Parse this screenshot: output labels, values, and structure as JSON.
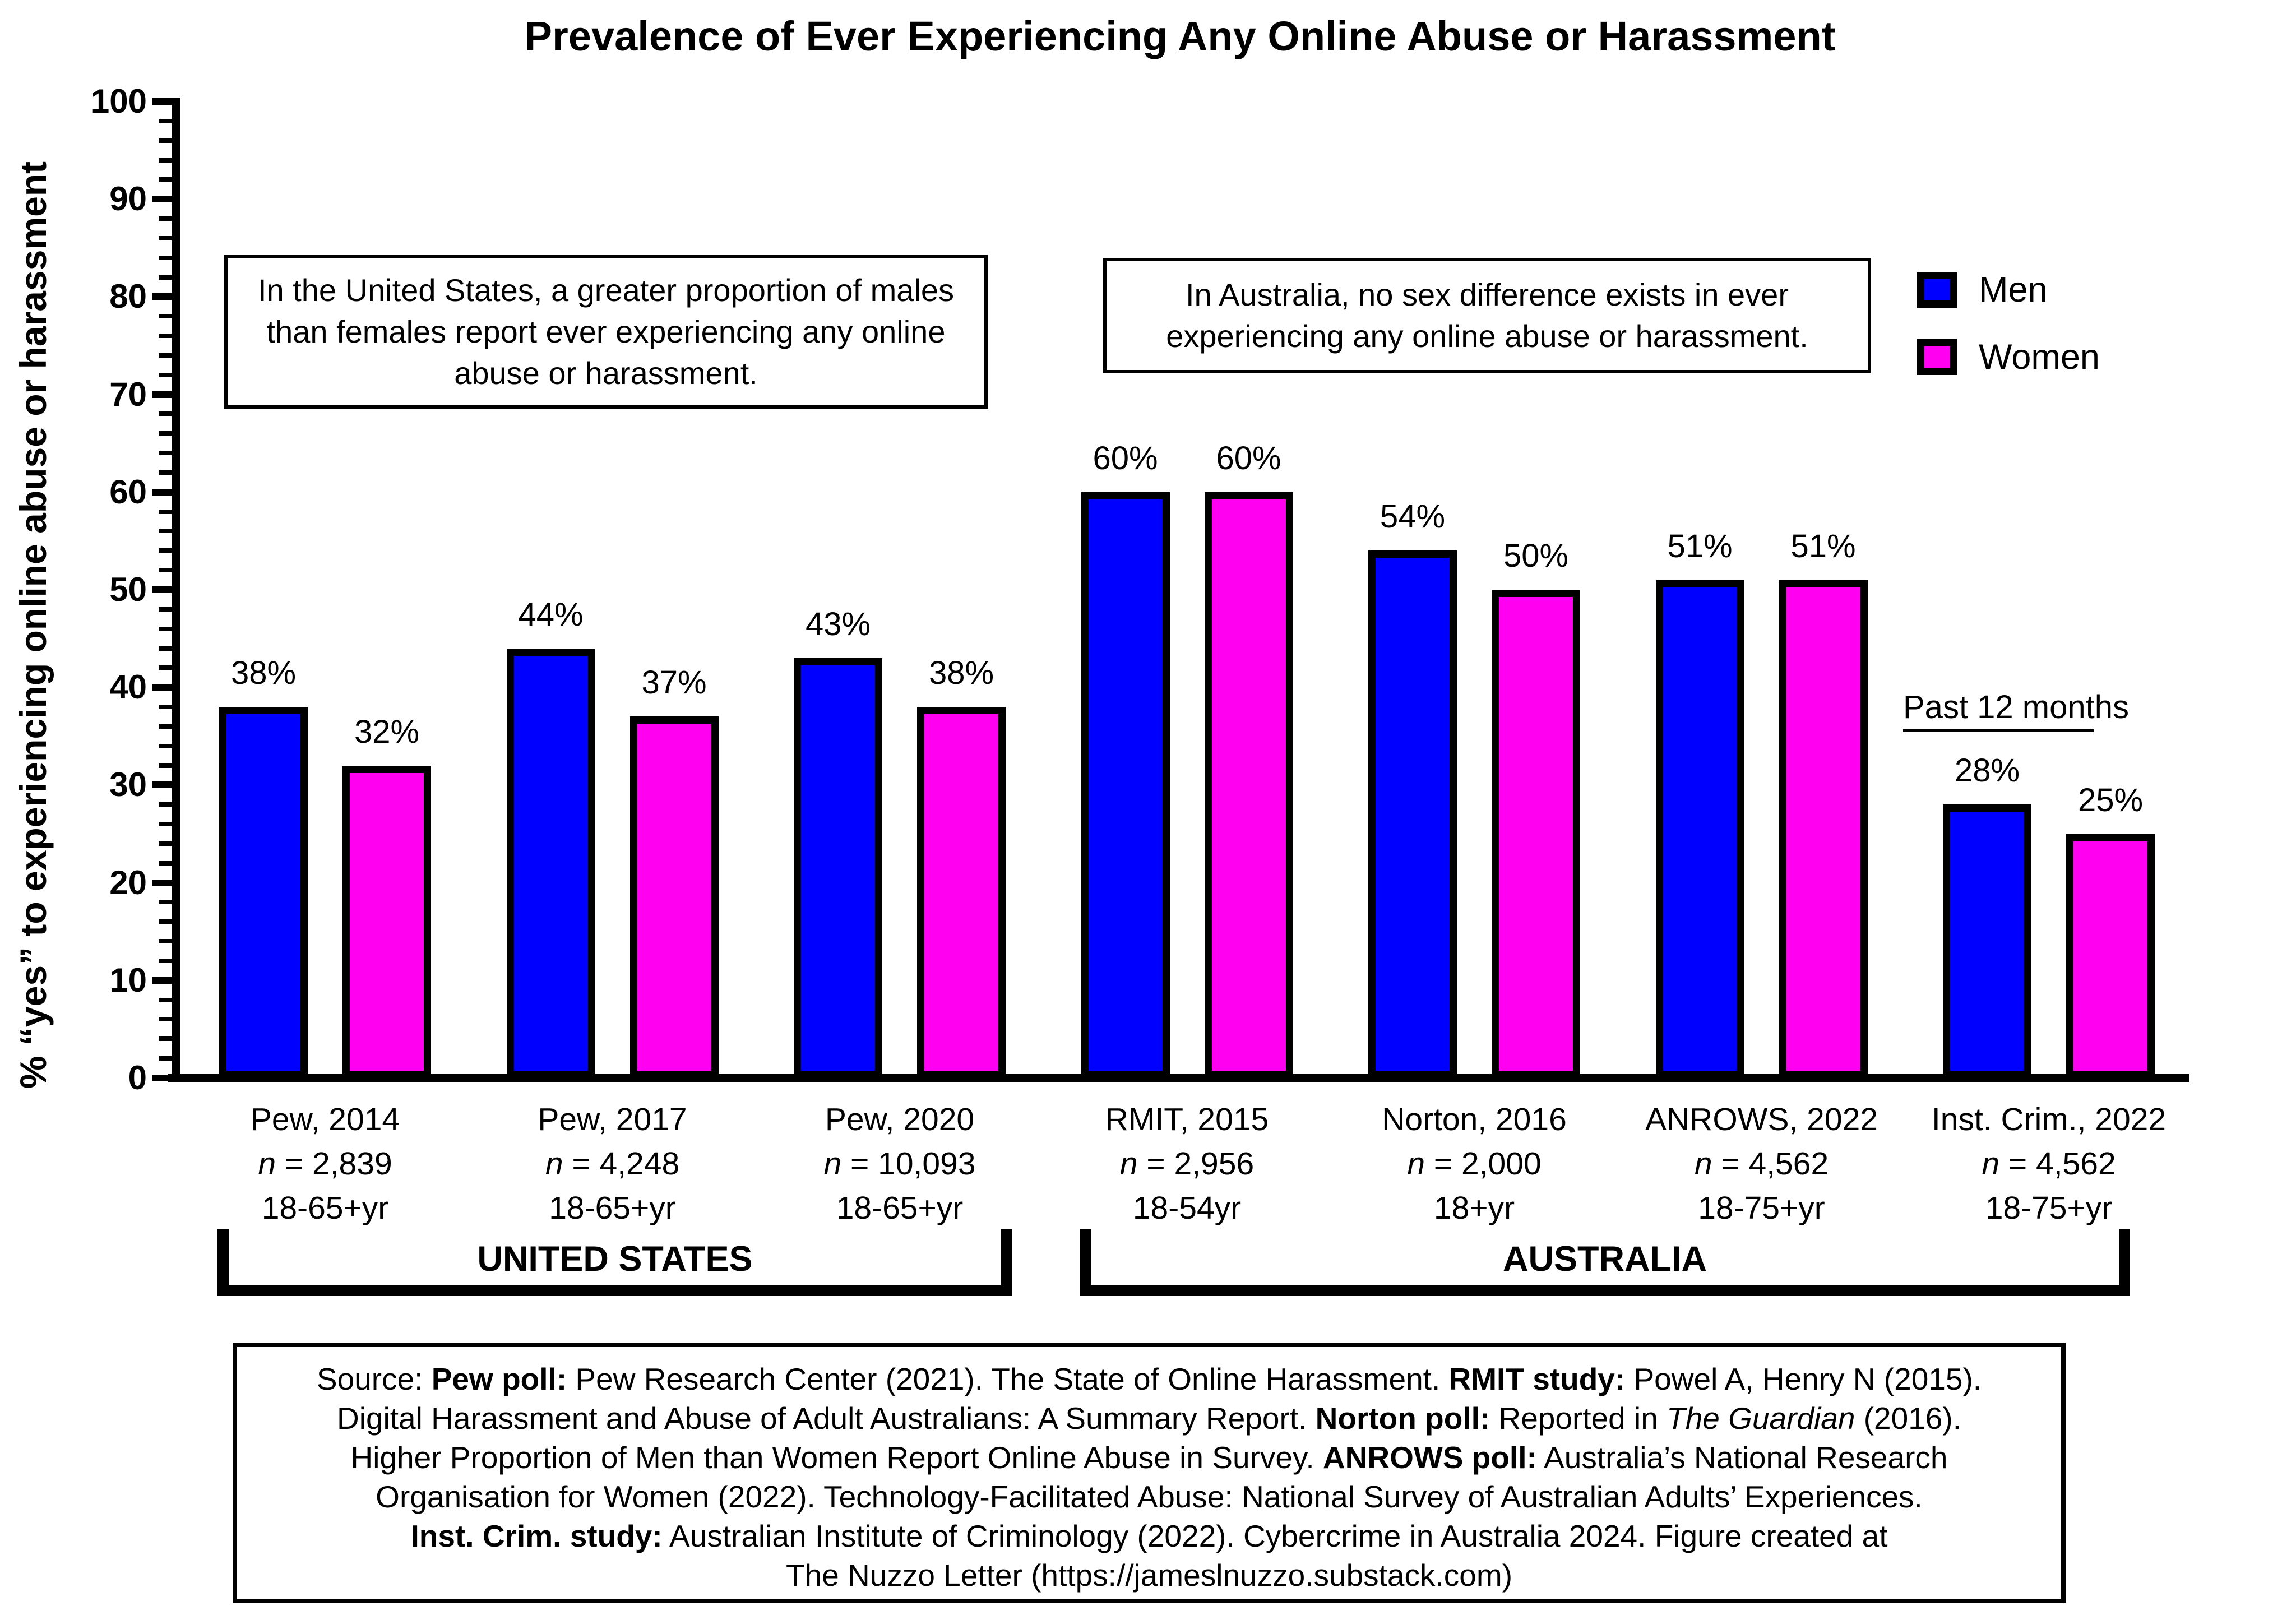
{
  "page": {
    "background": "#FFFFFF"
  },
  "chart_data": {
    "type": "bar",
    "title": "Prevalence of Ever Experiencing Any Online Abuse or Harassment",
    "ylabel": "% “yes” to experiencing online abuse or harassment",
    "ylim": [
      0,
      100
    ],
    "ytick_major_step": 10,
    "ytick_minor_step": 2,
    "grid": "off",
    "value_suffix": "%",
    "legend": {
      "position": "top-right",
      "entries": [
        {
          "label": "Men",
          "color": "#0000FF"
        },
        {
          "label": "Women",
          "color": "#FF00F0"
        }
      ]
    },
    "groups": [
      {
        "study": "Pew, 2014",
        "n_label": "n",
        "n_value": "2,839",
        "age": "18-65+yr",
        "men": 38,
        "women": 32
      },
      {
        "study": "Pew, 2017",
        "n_label": "n",
        "n_value": "4,248",
        "age": "18-65+yr",
        "men": 44,
        "women": 37
      },
      {
        "study": "Pew, 2020",
        "n_label": "n",
        "n_value": "10,093",
        "age": "18-65+yr",
        "men": 43,
        "women": 38
      },
      {
        "study": "RMIT, 2015",
        "n_label": "n",
        "n_value": "2,956",
        "age": "18-54yr",
        "men": 60,
        "women": 60
      },
      {
        "study": "Norton, 2016",
        "n_label": "n",
        "n_value": "2,000",
        "age": "18+yr",
        "men": 54,
        "women": 50
      },
      {
        "study": "ANROWS, 2022",
        "n_label": "n",
        "n_value": "4,562",
        "age": "18-75+yr",
        "men": 51,
        "women": 51
      },
      {
        "study": "Inst. Crim., 2022",
        "n_label": "n",
        "n_value": "4,562",
        "age": "18-75+yr",
        "men": 28,
        "women": 25
      }
    ],
    "region_brackets": [
      {
        "label": "UNITED STATES",
        "from_group": 0,
        "to_group": 2
      },
      {
        "label": "AUSTRALIA",
        "from_group": 3,
        "to_group": 6
      }
    ],
    "annotations": {
      "us_note": "In the United States, a greater proportion of males than females report ever experiencing any online abuse or harassment.",
      "aus_note": "In Australia, no sex difference exists in ever experiencing any online abuse or harassment.",
      "past_12_months": "Past 12 months"
    },
    "source_lines": [
      [
        {
          "t": "Source: "
        },
        {
          "t": "Pew poll:",
          "b": true
        },
        {
          "t": " Pew Research Center (2021). The State of Online Harassment. "
        },
        {
          "t": "RMIT study:",
          "b": true
        },
        {
          "t": " Powel A, Henry N (2015)."
        }
      ],
      [
        {
          "t": "Digital Harassment and Abuse of Adult Australians: A Summary Report. "
        },
        {
          "t": "Norton poll:",
          "b": true
        },
        {
          "t": " Reported in "
        },
        {
          "t": "The Guardian",
          "i": true
        },
        {
          "t": " (2016)."
        }
      ],
      [
        {
          "t": "Higher Proportion of Men than Women Report Online Abuse in Survey. "
        },
        {
          "t": "ANROWS poll:",
          "b": true
        },
        {
          "t": " Australia’s National Research"
        }
      ],
      [
        {
          "t": "Organisation for Women (2022). Technology-Facilitated Abuse: National Survey of Australian Adults’ Experiences."
        }
      ],
      [
        {
          "t": "Inst. Crim. study:",
          "b": true
        },
        {
          "t": " Australian Institute of Criminology (2022). Cybercrime in Australia 2024. Figure created at"
        }
      ],
      [
        {
          "t": "The Nuzzo Letter (https://jameslnuzzo.substack.com)"
        }
      ]
    ]
  }
}
